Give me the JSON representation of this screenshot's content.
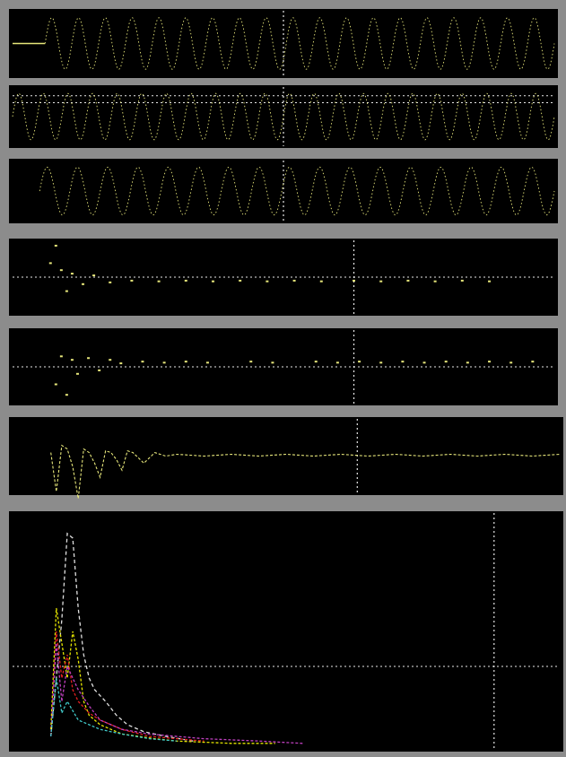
{
  "title": "",
  "colors": {
    "background": "#8c8c8c",
    "panel": "#000000",
    "signal": "#e6e67a",
    "guide": "#e8e8e8",
    "series_red": "#e02020",
    "series_magenta": "#c040c0",
    "series_cyan": "#40c8c8",
    "series_yellow": "#e6e600",
    "series_white": "#e0e0e0"
  },
  "chart_data": [
    {
      "type": "line",
      "name": "panel-1",
      "xlim": [
        0,
        100
      ],
      "ylim": [
        -1.2,
        1.2
      ],
      "grid": false,
      "flat_start_x": 6,
      "marker_x": 50,
      "waveform": {
        "amplitude": 1,
        "cycles": 19,
        "start_x": 6,
        "end_x": 100
      },
      "tick_labels": []
    },
    {
      "type": "line",
      "name": "panel-2",
      "xlim": [
        0,
        100
      ],
      "ylim": [
        -1.2,
        1.2
      ],
      "grid": false,
      "marker_x": 50,
      "reference_lines_y": [
        0.9,
        0.6
      ],
      "waveform": {
        "amplitude": 1,
        "cycles": 22,
        "start_x": 0,
        "end_x": 100
      },
      "tick_labels": []
    },
    {
      "type": "line",
      "name": "panel-3",
      "xlim": [
        0,
        100
      ],
      "ylim": [
        -1.2,
        1.2
      ],
      "grid": false,
      "marker_x": 50,
      "waveform": {
        "amplitude": 1,
        "cycles": 17,
        "start_x": 5,
        "end_x": 100
      },
      "tick_labels": []
    },
    {
      "type": "scatter",
      "name": "panel-4",
      "xlim": [
        0,
        100
      ],
      "ylim": [
        -1,
        1
      ],
      "grid": false,
      "marker_x": 63,
      "reference_line_y": 0,
      "x": [
        7,
        8,
        9,
        10,
        11,
        13,
        15,
        18,
        22,
        27,
        32,
        37,
        42,
        47,
        52,
        57,
        63,
        68,
        73,
        78,
        83,
        88
      ],
      "y": [
        0.4,
        0.9,
        0.2,
        -0.4,
        0.1,
        -0.2,
        0.05,
        -0.15,
        -0.1,
        -0.12,
        -0.1,
        -0.12,
        -0.1,
        -0.12,
        -0.1,
        -0.12,
        -0.1,
        -0.12,
        -0.1,
        -0.12,
        -0.1,
        -0.12
      ],
      "tick_labels": []
    },
    {
      "type": "scatter",
      "name": "panel-5",
      "xlim": [
        0,
        100
      ],
      "ylim": [
        -1,
        1
      ],
      "grid": false,
      "marker_x": 63,
      "reference_line_y": 0,
      "x": [
        8,
        9,
        10,
        11,
        12,
        14,
        16,
        18,
        20,
        24,
        28,
        32,
        36,
        44,
        48,
        56,
        60,
        64,
        68,
        72,
        76,
        80,
        84,
        88,
        92,
        96
      ],
      "y": [
        -0.5,
        0.3,
        -0.8,
        0.2,
        -0.2,
        0.25,
        -0.1,
        0.2,
        0.1,
        0.15,
        0.12,
        0.15,
        0.12,
        0.15,
        0.12,
        0.15,
        0.12,
        0.15,
        0.12,
        0.15,
        0.12,
        0.15,
        0.12,
        0.15,
        0.12,
        0.15
      ],
      "tick_labels": []
    },
    {
      "type": "line",
      "name": "panel-6",
      "xlim": [
        0,
        100
      ],
      "ylim": [
        -1,
        1
      ],
      "grid": false,
      "marker_x": 63,
      "x": [
        7,
        8,
        9,
        10,
        11,
        12,
        13,
        14,
        15,
        16,
        17,
        18,
        19,
        20,
        21,
        22,
        24,
        26,
        28,
        30,
        35,
        40,
        45,
        50,
        55,
        60,
        65,
        70,
        75,
        80,
        85,
        90,
        95,
        100
      ],
      "y": [
        0.1,
        -1.0,
        0.3,
        0.2,
        -0.3,
        -1.2,
        0.2,
        0.1,
        -0.2,
        -0.6,
        0.15,
        0.1,
        -0.1,
        -0.4,
        0.15,
        0.1,
        -0.2,
        0.1,
        0.0,
        0.05,
        0.0,
        0.05,
        0.0,
        0.05,
        0.0,
        0.05,
        0.0,
        0.05,
        0.0,
        0.05,
        0.0,
        0.05,
        0.0,
        0.05
      ],
      "tick_labels": []
    },
    {
      "type": "line",
      "name": "panel-7",
      "xlim": [
        0,
        100
      ],
      "ylim": [
        0,
        1
      ],
      "grid": false,
      "marker_x": 88,
      "reference_line_y": 0.35,
      "series": [
        {
          "color_key": "series_white",
          "x": [
            7,
            9,
            10,
            11,
            12,
            13,
            14,
            15,
            17,
            19,
            21,
            24,
            28,
            33
          ],
          "y": [
            0.05,
            0.55,
            0.92,
            0.9,
            0.6,
            0.4,
            0.3,
            0.25,
            0.2,
            0.14,
            0.1,
            0.07,
            0.05,
            0.03
          ]
        },
        {
          "color_key": "series_yellow",
          "x": [
            7,
            8,
            9,
            10,
            11,
            12,
            13,
            14,
            16,
            18,
            20,
            23,
            26,
            30,
            40,
            48
          ],
          "y": [
            0.08,
            0.6,
            0.45,
            0.3,
            0.5,
            0.38,
            0.2,
            0.14,
            0.1,
            0.08,
            0.06,
            0.05,
            0.04,
            0.03,
            0.02,
            0.02
          ]
        },
        {
          "color_key": "series_red",
          "x": [
            7,
            8,
            9,
            10,
            11,
            12,
            14,
            16,
            18,
            20,
            25,
            30,
            35
          ],
          "y": [
            0.05,
            0.5,
            0.3,
            0.4,
            0.25,
            0.2,
            0.15,
            0.12,
            0.1,
            0.08,
            0.05,
            0.04,
            0.03
          ]
        },
        {
          "color_key": "series_magenta",
          "x": [
            7,
            8,
            9,
            10,
            12,
            14,
            16,
            18,
            20,
            25,
            35,
            45,
            53
          ],
          "y": [
            0.05,
            0.45,
            0.2,
            0.35,
            0.25,
            0.18,
            0.12,
            0.1,
            0.08,
            0.06,
            0.04,
            0.03,
            0.02
          ]
        },
        {
          "color_key": "series_cyan",
          "x": [
            7,
            8,
            9,
            10,
            12,
            14,
            16,
            20,
            25,
            30
          ],
          "y": [
            0.05,
            0.3,
            0.15,
            0.2,
            0.12,
            0.1,
            0.08,
            0.06,
            0.04,
            0.03
          ]
        }
      ],
      "tick_labels": []
    }
  ]
}
